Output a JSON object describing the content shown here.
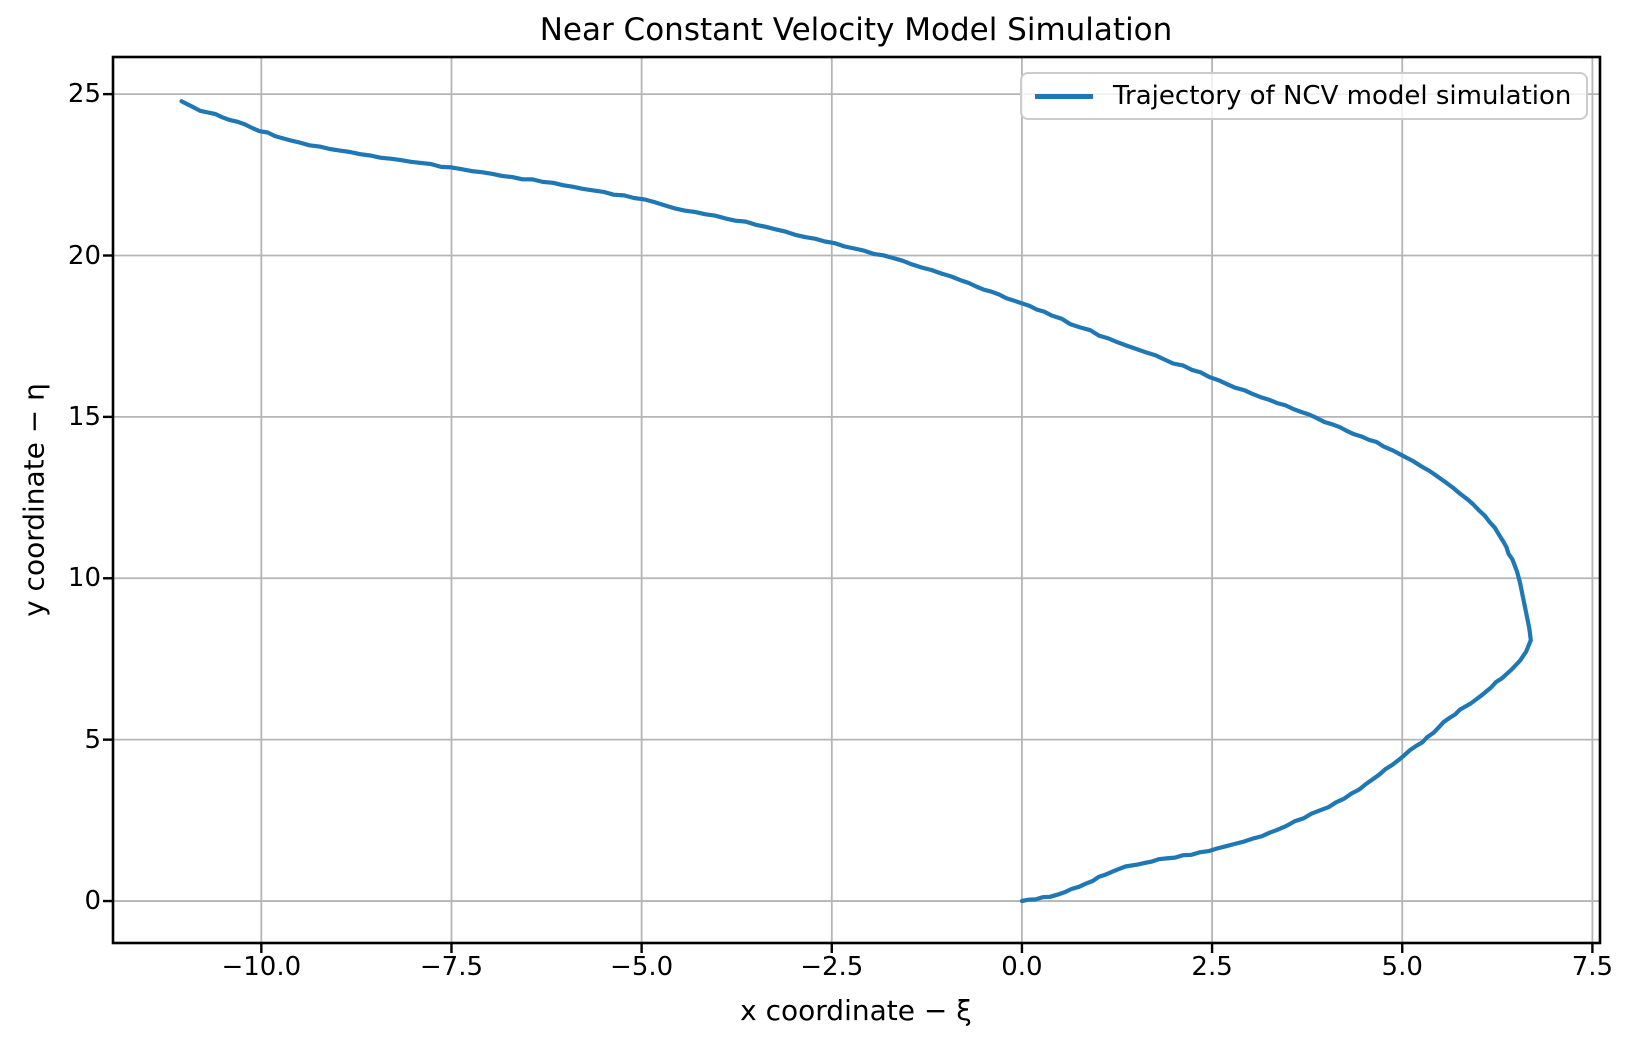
{
  "colors": {
    "line": "#1f77b4",
    "grid": "#b5b5b5",
    "spine": "#000000",
    "legend_border": "#cccccc",
    "background": "#ffffff",
    "text": "#000000"
  },
  "chart_data": {
    "type": "line",
    "title": "Near Constant Velocity Model Simulation",
    "xlabel": "x coordinate − ξ",
    "ylabel": "y coordinate − η",
    "xlim": [
      -11.95,
      7.6
    ],
    "ylim": [
      -1.3,
      26.15
    ],
    "grid": true,
    "xticks": {
      "values": [
        -10.0,
        -7.5,
        -5.0,
        -2.5,
        0.0,
        2.5,
        5.0,
        7.5
      ],
      "labels": [
        "−10.0",
        "−7.5",
        "−5.0",
        "−2.5",
        "0.0",
        "2.5",
        "5.0",
        "7.5"
      ]
    },
    "yticks": {
      "values": [
        0,
        5,
        10,
        15,
        20,
        25
      ],
      "labels": [
        "0",
        "5",
        "10",
        "15",
        "20",
        "25"
      ]
    },
    "legend": {
      "position": "upper right",
      "entries": [
        {
          "label": "Trajectory of NCV model simulation",
          "color": "#1f77b4"
        }
      ]
    },
    "series": [
      {
        "name": "Trajectory of NCV model simulation",
        "color": "#1f77b4",
        "points": [
          [
            0.0,
            0.0
          ],
          [
            0.18,
            0.05
          ],
          [
            0.37,
            0.13
          ],
          [
            0.56,
            0.27
          ],
          [
            0.75,
            0.44
          ],
          [
            0.93,
            0.62
          ],
          [
            1.1,
            0.82
          ],
          [
            1.24,
            0.96
          ],
          [
            1.36,
            1.07
          ],
          [
            1.52,
            1.13
          ],
          [
            1.7,
            1.22
          ],
          [
            1.9,
            1.32
          ],
          [
            2.12,
            1.42
          ],
          [
            2.34,
            1.51
          ],
          [
            2.57,
            1.63
          ],
          [
            2.8,
            1.77
          ],
          [
            3.03,
            1.93
          ],
          [
            3.26,
            2.12
          ],
          [
            3.48,
            2.33
          ],
          [
            3.7,
            2.56
          ],
          [
            3.92,
            2.81
          ],
          [
            4.13,
            3.06
          ],
          [
            4.33,
            3.33
          ],
          [
            4.52,
            3.62
          ],
          [
            4.7,
            3.92
          ],
          [
            4.87,
            4.22
          ],
          [
            5.03,
            4.52
          ],
          [
            5.18,
            4.8
          ],
          [
            5.33,
            5.08
          ],
          [
            5.48,
            5.38
          ],
          [
            5.62,
            5.67
          ],
          [
            5.76,
            5.93
          ],
          [
            5.9,
            6.12
          ],
          [
            6.03,
            6.35
          ],
          [
            6.17,
            6.62
          ],
          [
            6.31,
            6.9
          ],
          [
            6.44,
            7.18
          ],
          [
            6.55,
            7.45
          ],
          [
            6.63,
            7.73
          ],
          [
            6.69,
            8.08
          ],
          [
            6.67,
            8.45
          ],
          [
            6.64,
            8.8
          ],
          [
            6.61,
            9.15
          ],
          [
            6.58,
            9.5
          ],
          [
            6.55,
            9.85
          ],
          [
            6.51,
            10.2
          ],
          [
            6.45,
            10.58
          ],
          [
            6.37,
            10.97
          ],
          [
            6.27,
            11.36
          ],
          [
            6.15,
            11.74
          ],
          [
            6.01,
            12.1
          ],
          [
            5.85,
            12.46
          ],
          [
            5.67,
            12.8
          ],
          [
            5.47,
            13.14
          ],
          [
            5.25,
            13.47
          ],
          [
            5.01,
            13.79
          ],
          [
            4.75,
            14.09
          ],
          [
            4.47,
            14.39
          ],
          [
            4.18,
            14.68
          ],
          [
            3.88,
            14.96
          ],
          [
            3.57,
            15.24
          ],
          [
            3.25,
            15.53
          ],
          [
            2.92,
            15.83
          ],
          [
            2.58,
            16.14
          ],
          [
            2.23,
            16.46
          ],
          [
            1.87,
            16.78
          ],
          [
            1.51,
            17.1
          ],
          [
            1.14,
            17.43
          ],
          [
            0.77,
            17.77
          ],
          [
            0.39,
            18.14
          ],
          [
            0.0,
            18.52
          ],
          [
            -0.4,
            18.88
          ],
          [
            -0.8,
            19.23
          ],
          [
            -1.19,
            19.55
          ],
          [
            -1.57,
            19.84
          ],
          [
            -1.95,
            20.05
          ],
          [
            -2.33,
            20.28
          ],
          [
            -2.72,
            20.52
          ],
          [
            -3.11,
            20.74
          ],
          [
            -3.5,
            20.95
          ],
          [
            -3.9,
            21.15
          ],
          [
            -4.3,
            21.35
          ],
          [
            -4.7,
            21.56
          ],
          [
            -5.1,
            21.78
          ],
          [
            -5.5,
            21.97
          ],
          [
            -5.9,
            22.13
          ],
          [
            -6.3,
            22.28
          ],
          [
            -6.7,
            22.43
          ],
          [
            -7.1,
            22.58
          ],
          [
            -7.5,
            22.73
          ],
          [
            -7.9,
            22.87
          ],
          [
            -8.3,
            23.0
          ],
          [
            -8.7,
            23.14
          ],
          [
            -9.1,
            23.3
          ],
          [
            -9.5,
            23.5
          ],
          [
            -9.82,
            23.7
          ],
          [
            -10.12,
            23.95
          ],
          [
            -10.42,
            24.2
          ],
          [
            -10.7,
            24.43
          ],
          [
            -10.9,
            24.6
          ],
          [
            -11.05,
            24.78
          ]
        ]
      }
    ]
  }
}
